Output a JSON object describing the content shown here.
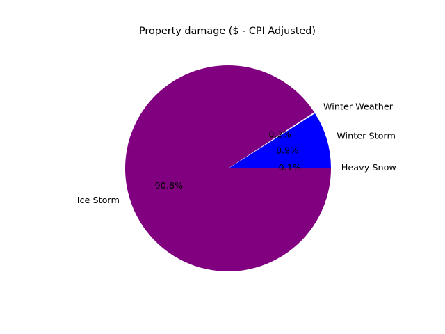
{
  "chart_data": {
    "type": "pie",
    "title": "Property damage ($ - CPI Adjusted)",
    "categories": [
      "Heavy Snow",
      "Winter Storm",
      "Winter Weather",
      "Ice Storm"
    ],
    "values": [
      0.1,
      8.9,
      0.2,
      90.8
    ],
    "percent_labels": [
      "0.1%",
      "8.9%",
      "0.2%",
      "90.8%"
    ],
    "colors": [
      "#ffffff",
      "#0000ff",
      "#ffffff",
      "#800080"
    ],
    "start_angle_deg": 0,
    "direction": "counterclockwise",
    "legend": "none",
    "grid": false
  }
}
